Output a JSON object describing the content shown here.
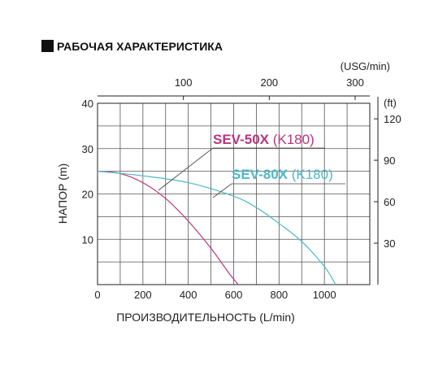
{
  "header": {
    "title": "РАБОЧАЯ ХАРАКТЕРИСТИКА"
  },
  "chart_data": {
    "type": "line",
    "title": "РАБОЧАЯ ХАРАКТЕРИСТИКА",
    "xlabel": "ПРОИЗВОДИТЕЛЬНОСТЬ (L/min)",
    "ylabel": "НАПОР (m)",
    "xlim": [
      0,
      1200
    ],
    "ylim": [
      0,
      40
    ],
    "x_ticks": [
      0,
      200,
      400,
      600,
      800,
      1000
    ],
    "y_ticks": [
      10,
      20,
      30,
      40
    ],
    "grid": true,
    "top_axis": {
      "label": "(USG/min)",
      "ticks": [
        100,
        200,
        300
      ],
      "per_l_min": 0.2642
    },
    "right_axis": {
      "label": "(ft)",
      "ticks": [
        30,
        60,
        90,
        120
      ],
      "per_m": 3.2808
    },
    "series": [
      {
        "name": "SEV-50X (K180)",
        "model": "SEV-50X",
        "suffix": "(K180)",
        "color": "#b8357e",
        "x": [
          0,
          100,
          200,
          300,
          400,
          500,
          580,
          620
        ],
        "y": [
          25,
          24.5,
          22.5,
          19,
          14,
          8,
          2.5,
          0
        ]
      },
      {
        "name": "SEV-80X (K180)",
        "model": "SEV-80X",
        "suffix": "(K180)",
        "color": "#4db8c8",
        "x": [
          0,
          200,
          400,
          600,
          700,
          800,
          900,
          1000,
          1050
        ],
        "y": [
          25,
          24,
          22.5,
          19.5,
          17,
          13.5,
          9.5,
          4,
          0
        ]
      }
    ]
  }
}
